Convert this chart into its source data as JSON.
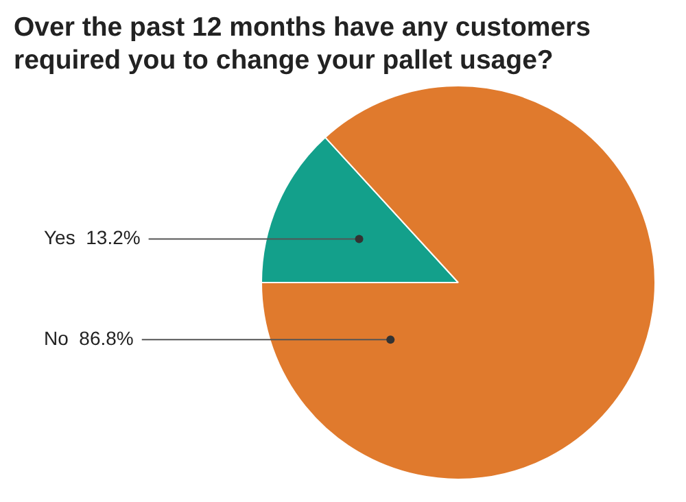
{
  "chart_data": {
    "type": "pie",
    "title": "Over the past 12 months have any customers required you to change your pallet usage?",
    "categories": [
      "Yes",
      "No"
    ],
    "values": [
      13.2,
      86.8
    ],
    "value_labels": [
      "13.2%",
      "86.8%"
    ],
    "colors": [
      "#13a08b",
      "#e07a2d"
    ],
    "legend": false
  }
}
